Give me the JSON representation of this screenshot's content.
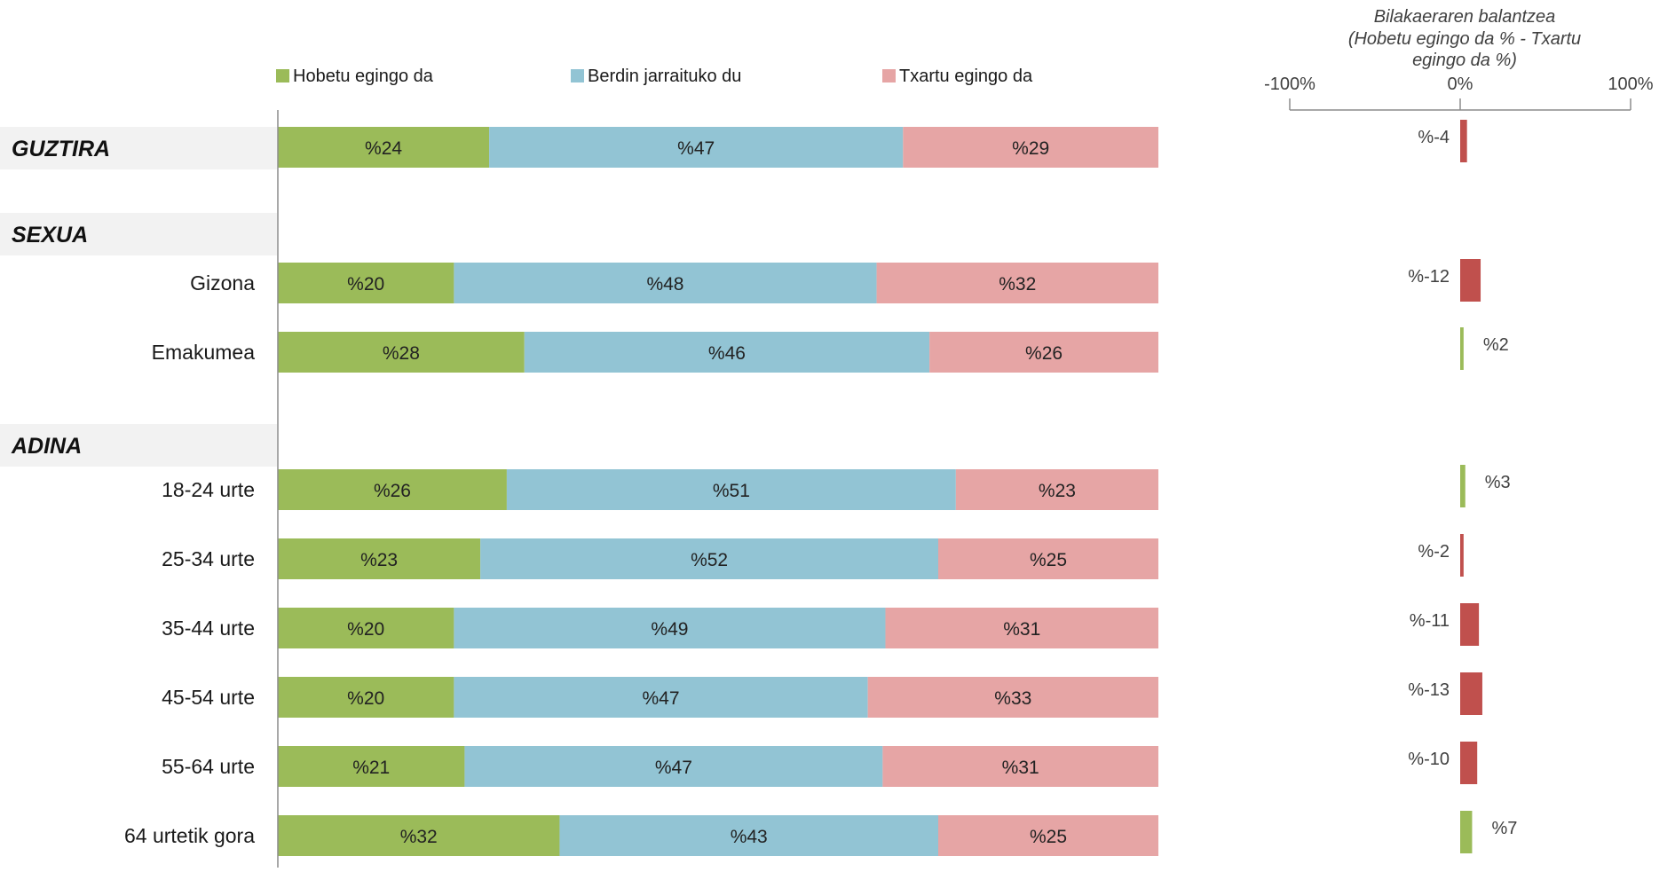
{
  "chart_data": [
    {
      "type": "bar",
      "orientation": "horizontal",
      "stacked": "percent",
      "legend": {
        "placement": "top",
        "entries": [
          "Hobetu egingo da",
          "Berdin jarraituko du",
          "Txartu egingo da"
        ]
      },
      "sections": [
        {
          "header": "GUZTIRA",
          "rows": [
            {
              "label": "",
              "values": [
                24,
                47,
                29
              ]
            }
          ]
        },
        {
          "header": "SEXUA",
          "rows": [
            {
              "label": "Gizona",
              "values": [
                20,
                48,
                32
              ]
            },
            {
              "label": "Emakumea",
              "values": [
                28,
                46,
                26
              ]
            }
          ]
        },
        {
          "header": "ADINA",
          "rows": [
            {
              "label": "18-24 urte",
              "values": [
                26,
                51,
                23
              ]
            },
            {
              "label": "25-34 urte",
              "values": [
                23,
                52,
                25
              ]
            },
            {
              "label": "35-44 urte",
              "values": [
                20,
                49,
                31
              ]
            },
            {
              "label": "45-54 urte",
              "values": [
                20,
                47,
                33
              ]
            },
            {
              "label": "55-64 urte",
              "values": [
                21,
                47,
                31
              ]
            },
            {
              "label": "64 urtetik gora",
              "values": [
                32,
                43,
                25
              ]
            }
          ]
        }
      ],
      "value_prefix": "%",
      "colors": [
        "#9bbb59",
        "#92c4d4",
        "#e6a5a5"
      ],
      "grid": false
    },
    {
      "type": "bar",
      "orientation": "horizontal",
      "title": "Bilakaeraren balantzea",
      "subtitle_lines": [
        "(Hobetu egingo da % - Txartu",
        "egingo da %)"
      ],
      "xlim": [
        -100,
        100
      ],
      "tick_labels": [
        "-100%",
        "0%",
        "100%"
      ],
      "values": [
        -4,
        -12,
        2,
        3,
        -2,
        -11,
        -13,
        -10,
        7
      ],
      "data_labels": [
        "%-4",
        "%-12",
        "%2",
        "%3",
        "%-2",
        "%-11",
        "%-13",
        "%-10",
        "%7"
      ],
      "colors": {
        "positive": "#9bbb59",
        "negative": "#c0504d"
      }
    }
  ]
}
